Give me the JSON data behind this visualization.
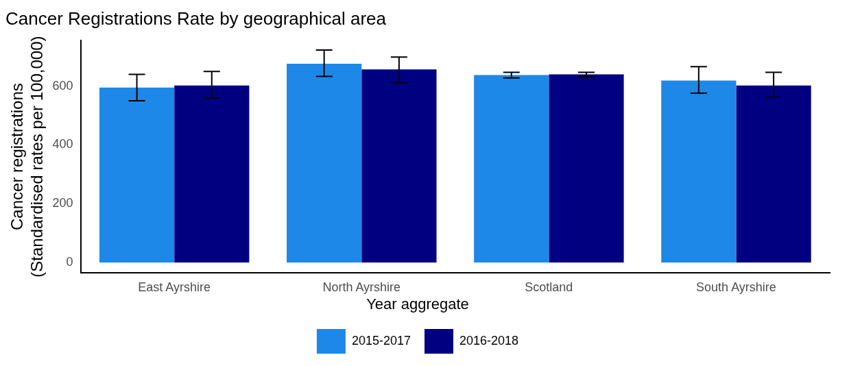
{
  "chart_data": {
    "type": "bar",
    "title": "Cancer Registrations Rate by geographical area",
    "ylabel": "Cancer registrations\n(Standardised rates per 100,000)",
    "legend_title": "Year aggregate",
    "categories": [
      "East Ayrshire",
      "North Ayrshire",
      "Scotland",
      "South Ayrshire"
    ],
    "series": [
      {
        "name": "2015-2017",
        "color": "#1e88e8",
        "values": [
          595,
          676,
          638,
          619
        ],
        "errors": [
          [
            550,
            640
          ],
          [
            633,
            723
          ],
          [
            628,
            647
          ],
          [
            576,
            666
          ]
        ]
      },
      {
        "name": "2016-2018",
        "color": "#000080",
        "values": [
          602,
          657,
          640,
          602
        ],
        "errors": [
          [
            560,
            650
          ],
          [
            612,
            699
          ],
          [
            631,
            647
          ],
          [
            562,
            647
          ]
        ]
      }
    ],
    "ylim": [
      -35,
      755
    ],
    "yticks": [
      0,
      200,
      400,
      600
    ],
    "grid": false,
    "legend": "bottom"
  }
}
